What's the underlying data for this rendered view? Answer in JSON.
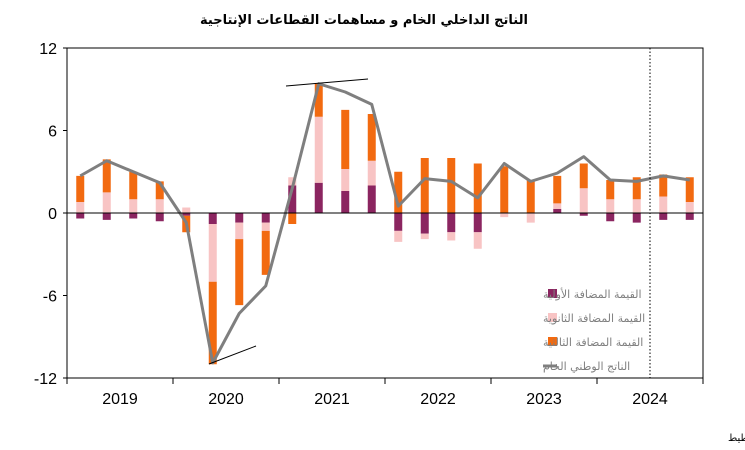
{
  "chart_data": {
    "type": "bar",
    "title": "الناتج الداخلي الخام و مساهمات القطاعات الإنتاجية",
    "source": "المصدر : المندوبية السامية للتخطيط",
    "ylim": [
      -12,
      12
    ],
    "y_ticks": [
      "12",
      "6",
      "0",
      "-6",
      "-12"
    ],
    "y_tick_values": [
      12,
      6,
      0,
      -6,
      -12
    ],
    "year_labels": [
      "2019",
      "2020",
      "2021",
      "2022",
      "2023",
      "2024"
    ],
    "quarters": [
      "2019Q1",
      "2019Q2",
      "2019Q3",
      "2019Q4",
      "2020Q1",
      "2020Q2",
      "2020Q3",
      "2020Q4",
      "2021Q1",
      "2021Q2",
      "2021Q3",
      "2021Q4",
      "2022Q1",
      "2022Q2",
      "2022Q3",
      "2022Q4",
      "2023Q1",
      "2023Q2",
      "2023Q3",
      "2023Q4",
      "2024Q1",
      "2024Q2",
      "2024Q3",
      "2024Q4"
    ],
    "series": [
      {
        "name": "القيمة المضافة الأولية",
        "kind": "bar",
        "color": "#8b2560",
        "values": [
          -0.4,
          -0.5,
          -0.4,
          -0.6,
          -0.2,
          -0.8,
          -0.7,
          -0.7,
          2.0,
          2.2,
          1.6,
          2.0,
          -1.3,
          -1.5,
          -1.4,
          -1.4,
          0.0,
          0.0,
          0.3,
          -0.2,
          -0.6,
          -0.7,
          -0.5,
          -0.5
        ]
      },
      {
        "name": "القيمة المضافة الثانوية",
        "kind": "bar",
        "color": "#f8c4c4",
        "values": [
          0.8,
          1.5,
          1.0,
          1.0,
          0.4,
          -4.2,
          -1.2,
          -0.6,
          0.6,
          4.8,
          1.6,
          1.8,
          -0.8,
          -0.4,
          -0.6,
          -1.2,
          -0.3,
          -0.7,
          0.4,
          1.8,
          1.0,
          1.0,
          1.2,
          0.8
        ]
      },
      {
        "name": "القيمة المضافة الثالثية",
        "kind": "bar",
        "color": "#f26a10",
        "values": [
          1.9,
          2.4,
          2.0,
          1.3,
          -1.2,
          -6.0,
          -4.8,
          -3.2,
          -0.8,
          2.4,
          4.3,
          3.4,
          3.0,
          4.0,
          4.0,
          3.6,
          3.4,
          2.4,
          2.0,
          1.8,
          1.4,
          1.6,
          1.6,
          1.8
        ]
      },
      {
        "name": "الناتج الوطني الخام",
        "kind": "line",
        "color": "#7f7f7f",
        "values": [
          2.7,
          3.8,
          3.0,
          2.2,
          -0.7,
          -10.9,
          -7.3,
          -5.3,
          1.8,
          9.4,
          8.8,
          7.9,
          0.5,
          2.5,
          2.3,
          1.1,
          3.6,
          2.3,
          2.9,
          4.1,
          2.4,
          2.3,
          2.7,
          2.4
        ]
      }
    ],
    "legend_position": "bottom-right-inside",
    "grid": false,
    "vertical_marker_after": "2024Q2"
  }
}
